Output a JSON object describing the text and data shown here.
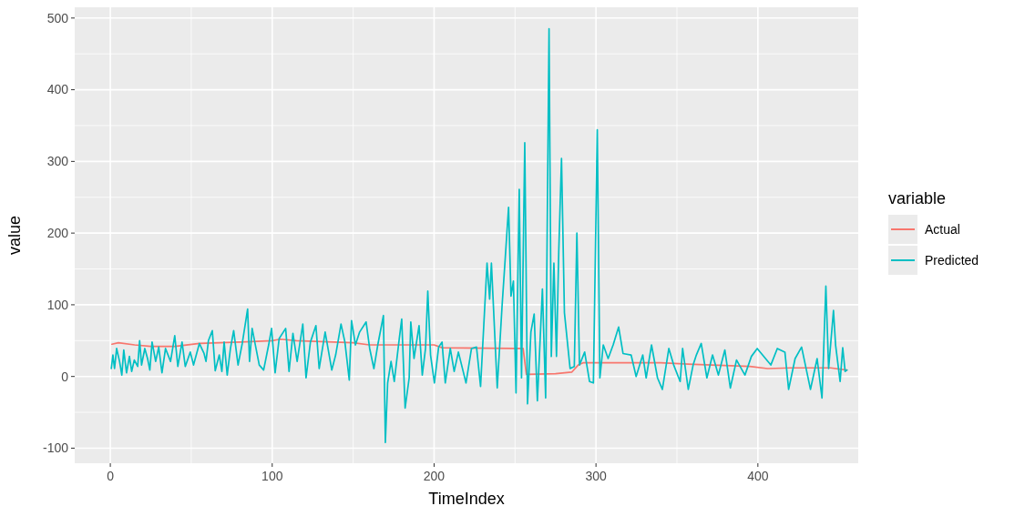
{
  "chart_data": {
    "type": "line",
    "xlabel": "TimeIndex",
    "ylabel": "value",
    "legend_title": "variable",
    "legend": "right",
    "grid": true,
    "xlim": [
      -22,
      462
    ],
    "ylim": [
      -121,
      515
    ],
    "xticks": [
      0,
      100,
      200,
      300,
      400
    ],
    "yticks": [
      -100,
      0,
      100,
      200,
      300,
      400,
      500
    ],
    "series": [
      {
        "name": "Actual",
        "color": "#f8766d",
        "x": [
          1,
          5,
          15,
          25,
          40,
          55,
          80,
          100,
          105,
          115,
          150,
          160,
          200,
          205,
          250,
          255,
          257,
          275,
          285,
          289,
          292,
          340,
          360,
          395,
          406,
          420,
          445,
          455
        ],
        "values": [
          45,
          47,
          44,
          42,
          42,
          46,
          48,
          50,
          52,
          50,
          47,
          44,
          44,
          40,
          39,
          39,
          3,
          4,
          6,
          16,
          19,
          19,
          17,
          14,
          11,
          12,
          12,
          9
        ]
      },
      {
        "name": "Predicted",
        "color": "#00bfc4",
        "x": [
          0.6,
          1.6,
          2.6,
          3.9,
          5.7,
          7.1,
          8.3,
          10,
          11.8,
          13.2,
          14.8,
          16.9,
          18.1,
          19.3,
          21.3,
          23,
          24.4,
          25.8,
          28,
          29.9,
          31.9,
          34.1,
          37.2,
          39.8,
          41.7,
          44.3,
          46.3,
          49.4,
          51.4,
          55,
          57.9,
          59.1,
          60.6,
          63,
          64.8,
          67.3,
          68.9,
          70.3,
          72.2,
          74.2,
          76.2,
          78.9,
          81.5,
          84.8,
          86,
          87.6,
          90,
          92,
          94.7,
          97.8,
          99.6,
          101.8,
          104.3,
          108.3,
          110.4,
          112.8,
          115.4,
          118.9,
          120.9,
          123.6,
          127,
          129,
          132.7,
          136.8,
          139.2,
          142.5,
          144.9,
          147.6,
          149,
          151.4,
          154,
          158,
          160.2,
          162.8,
          165.2,
          168.7,
          169.9,
          171.3,
          173.4,
          175.4,
          178.5,
          180,
          182.1,
          184.6,
          185.6,
          187.6,
          190.7,
          192.7,
          194.7,
          196.1,
          197.8,
          200.2,
          202.8,
          204.9,
          206.9,
          210,
          212.4,
          215,
          219.7,
          223.1,
          226.2,
          228.7,
          232.7,
          234.3,
          235.4,
          239,
          242,
          244,
          246,
          247.5,
          249,
          250.6,
          252.6,
          254,
          256,
          257.7,
          259.8,
          261.8,
          263.8,
          266.9,
          268.9,
          271,
          272.4,
          274,
          275.6,
          277,
          278.7,
          280.5,
          284,
          286.6,
          288.2,
          289.8,
          293,
          296,
          298.4,
          300.8,
          302.4,
          304.5,
          307.5,
          310.6,
          314,
          316.7,
          321.7,
          324.8,
          328.9,
          331,
          334.3,
          338,
          341,
          345,
          348,
          352,
          353.5,
          357,
          360,
          362,
          365,
          368.5,
          372,
          375.6,
          379.6,
          383,
          386.8,
          392,
          396,
          399.6,
          408,
          412,
          416.7,
          419,
          423,
          427,
          432.5,
          436.6,
          439.6,
          442,
          443.7,
          446.7,
          448,
          450.8,
          452.4,
          453.9,
          455
        ],
        "values": [
          11,
          30,
          11,
          39,
          21,
          2,
          37,
          5,
          28,
          7,
          23,
          14,
          50,
          16,
          39,
          25,
          9,
          48,
          21,
          41,
          5,
          39,
          21,
          57,
          14,
          48,
          14,
          34,
          16,
          46,
          32,
          21,
          50,
          64,
          8,
          30,
          7,
          48,
          2,
          39,
          64,
          16,
          46,
          94,
          21,
          67,
          39,
          16,
          9,
          44,
          67,
          5,
          53,
          67,
          7,
          60,
          21,
          73,
          -2,
          48,
          71,
          11,
          62,
          9,
          30,
          73,
          48,
          -5,
          78,
          44,
          62,
          76,
          39,
          11,
          44,
          85,
          -92,
          -9,
          21,
          -7,
          53,
          80,
          -44,
          -2,
          76,
          25,
          71,
          2,
          39,
          119,
          30,
          -9,
          41,
          48,
          -9,
          39,
          7,
          34,
          -9,
          39,
          41,
          -14,
          158,
          108,
          158,
          -16,
          99,
          167,
          236,
          112,
          133,
          -23,
          261,
          -2,
          326,
          -38,
          62,
          87,
          -34,
          122,
          -30,
          485,
          28,
          158,
          28,
          174,
          304,
          89,
          11,
          14,
          200,
          16,
          34,
          -7,
          -9,
          344,
          -2,
          44,
          25,
          44,
          69,
          32,
          30,
          0,
          30,
          -2,
          44,
          -2,
          -18,
          39,
          16,
          -7,
          39,
          -18,
          16,
          30,
          46,
          -2,
          30,
          2,
          37,
          -16,
          23,
          2,
          28,
          39,
          16,
          39,
          34,
          -18,
          25,
          41,
          -18,
          25,
          -30,
          126,
          11,
          92,
          44,
          -7,
          40,
          7,
          9
        ]
      }
    ]
  }
}
